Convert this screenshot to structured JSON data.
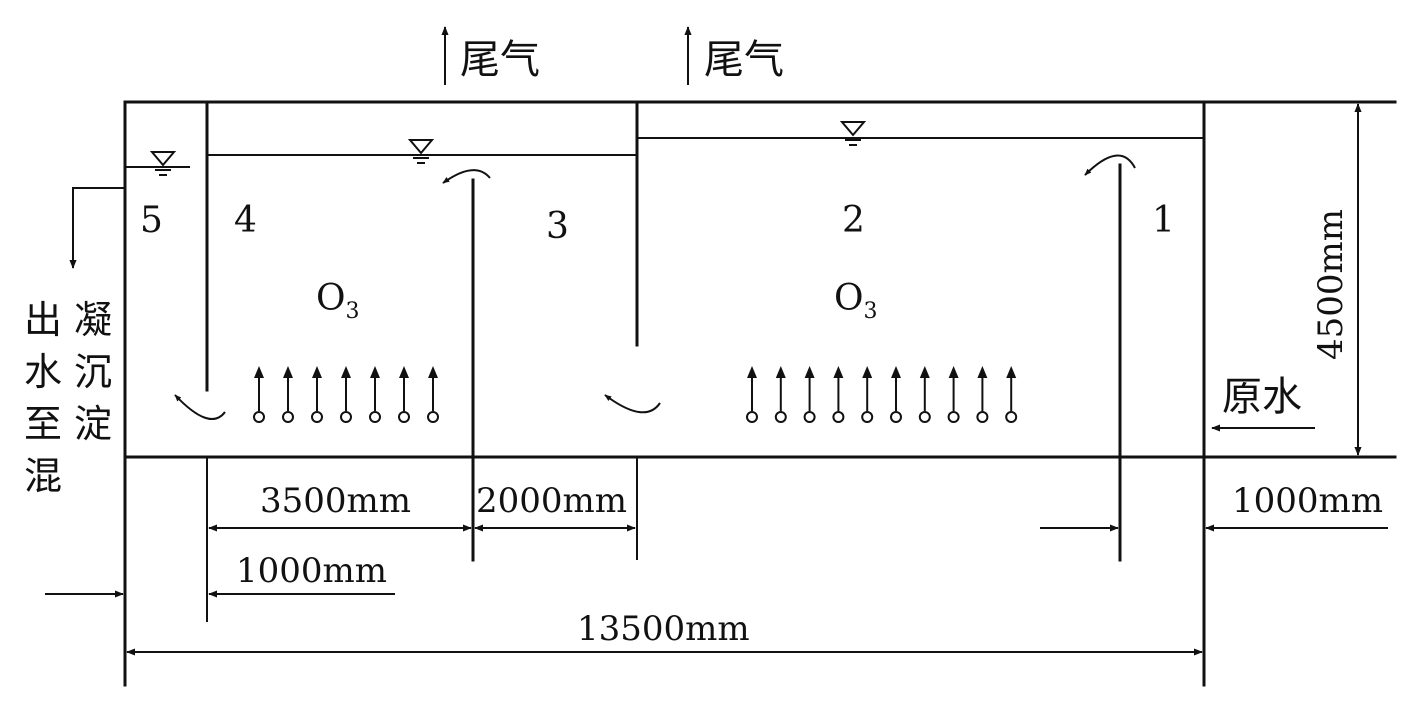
{
  "labels": {
    "exhaust": "尾气",
    "ozone": "O",
    "ozone_sub": "3",
    "raw_water": "原水",
    "outlet": [
      "出",
      "水",
      "至",
      "混"
    ],
    "outlet2": [
      "凝",
      "沉",
      "淀"
    ]
  },
  "compartments": [
    "5",
    "4",
    "3",
    "2",
    "1"
  ],
  "dimensions": {
    "d_3500": "3500mm",
    "d_2000": "2000mm",
    "d_1000_right": "1000mm",
    "d_1000_left": "1000mm",
    "d_13500": "13500mm",
    "d_4500": "4500mm"
  },
  "colors": {
    "ink": "#111111",
    "background": "#ffffff"
  }
}
